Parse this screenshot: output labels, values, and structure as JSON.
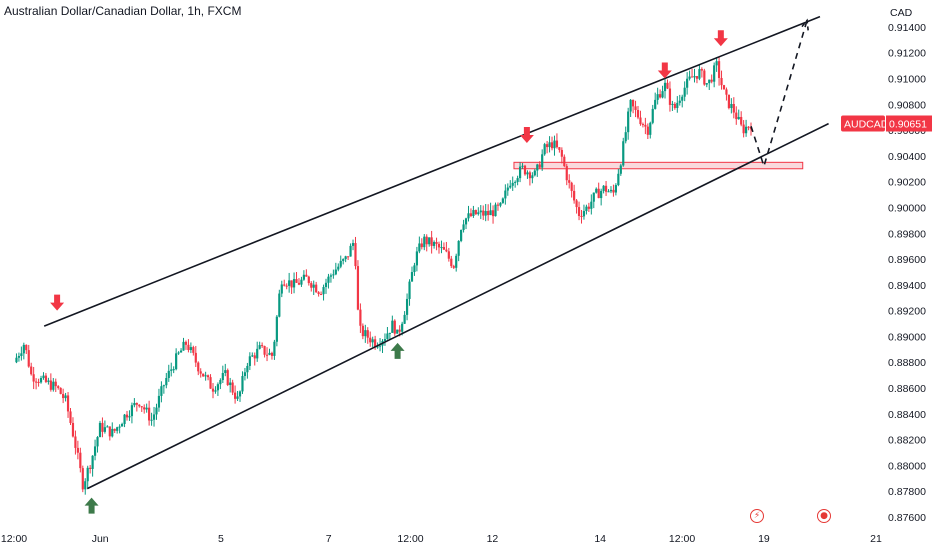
{
  "header": {
    "title": "Australian Dollar/Canadian Dollar, 1h, FXCM"
  },
  "colors": {
    "up": "#089981",
    "down": "#f23645",
    "line": "#131722",
    "zone_fill": "#f7c9ce",
    "zone_stroke": "#f23645",
    "arrow_up": "#3d7a4a",
    "arrow_down": "#f23645",
    "badge": "#f23645"
  },
  "icons": {
    "flash": "lightning-icon",
    "news": "globe-icon"
  },
  "chart_data": {
    "type": "candlestick",
    "title": "Australian Dollar/Canadian Dollar, 1h, FXCM",
    "symbol": "AUDCAD",
    "currency": "CAD",
    "last_price": 0.90651,
    "last_price_label": "0.90651",
    "ylim": [
      0.876,
      0.915
    ],
    "y_ticks": [
      "0.91400",
      "0.91200",
      "0.91000",
      "0.90800",
      "0.90600",
      "0.90400",
      "0.90200",
      "0.90000",
      "0.89800",
      "0.89600",
      "0.89400",
      "0.89200",
      "0.89000",
      "0.88800",
      "0.88600",
      "0.88400",
      "0.88200",
      "0.88000",
      "0.87800",
      "0.87600"
    ],
    "x_ticks": [
      {
        "label": "12:00",
        "pos": 0.0
      },
      {
        "label": "Jun",
        "pos": 0.1
      },
      {
        "label": "5",
        "pos": 0.24
      },
      {
        "label": "7",
        "pos": 0.365
      },
      {
        "label": "12:00",
        "pos": 0.46
      },
      {
        "label": "12",
        "pos": 0.555
      },
      {
        "label": "14",
        "pos": 0.68
      },
      {
        "label": "12:00",
        "pos": 0.775
      },
      {
        "label": "19",
        "pos": 0.87
      },
      {
        "label": "21",
        "pos": 1.0
      }
    ],
    "close_path": [
      [
        0.0,
        0.888
      ],
      [
        0.012,
        0.8895
      ],
      [
        0.02,
        0.887
      ],
      [
        0.035,
        0.8865
      ],
      [
        0.05,
        0.886
      ],
      [
        0.06,
        0.885
      ],
      [
        0.07,
        0.882
      ],
      [
        0.08,
        0.8785
      ],
      [
        0.09,
        0.8805
      ],
      [
        0.1,
        0.883
      ],
      [
        0.115,
        0.8825
      ],
      [
        0.13,
        0.884
      ],
      [
        0.145,
        0.885
      ],
      [
        0.16,
        0.8835
      ],
      [
        0.175,
        0.8865
      ],
      [
        0.19,
        0.8885
      ],
      [
        0.2,
        0.8895
      ],
      [
        0.215,
        0.8875
      ],
      [
        0.23,
        0.886
      ],
      [
        0.245,
        0.887
      ],
      [
        0.26,
        0.885
      ],
      [
        0.27,
        0.888
      ],
      [
        0.285,
        0.889
      ],
      [
        0.3,
        0.8885
      ],
      [
        0.31,
        0.8945
      ],
      [
        0.325,
        0.894
      ],
      [
        0.34,
        0.8945
      ],
      [
        0.355,
        0.8935
      ],
      [
        0.37,
        0.895
      ],
      [
        0.385,
        0.896
      ],
      [
        0.395,
        0.8975
      ],
      [
        0.4,
        0.8905
      ],
      [
        0.41,
        0.89
      ],
      [
        0.42,
        0.8895
      ],
      [
        0.43,
        0.89
      ],
      [
        0.44,
        0.891
      ],
      [
        0.445,
        0.89
      ],
      [
        0.455,
        0.8925
      ],
      [
        0.465,
        0.896
      ],
      [
        0.475,
        0.8975
      ],
      [
        0.49,
        0.897
      ],
      [
        0.5,
        0.8965
      ],
      [
        0.51,
        0.8955
      ],
      [
        0.52,
        0.899
      ],
      [
        0.535,
        0.8995
      ],
      [
        0.55,
        0.8995
      ],
      [
        0.565,
        0.9
      ],
      [
        0.575,
        0.902
      ],
      [
        0.59,
        0.903
      ],
      [
        0.605,
        0.9025
      ],
      [
        0.615,
        0.9045
      ],
      [
        0.625,
        0.905
      ],
      [
        0.635,
        0.904
      ],
      [
        0.645,
        0.9015
      ],
      [
        0.655,
        0.8995
      ],
      [
        0.665,
        0.9
      ],
      [
        0.675,
        0.901
      ],
      [
        0.685,
        0.9015
      ],
      [
        0.695,
        0.901
      ],
      [
        0.705,
        0.904
      ],
      [
        0.715,
        0.908
      ],
      [
        0.725,
        0.907
      ],
      [
        0.735,
        0.906
      ],
      [
        0.745,
        0.9085
      ],
      [
        0.755,
        0.9095
      ],
      [
        0.765,
        0.9075
      ],
      [
        0.775,
        0.909
      ],
      [
        0.785,
        0.91
      ],
      [
        0.795,
        0.9105
      ],
      [
        0.805,
        0.9095
      ],
      [
        0.815,
        0.911
      ],
      [
        0.825,
        0.9085
      ],
      [
        0.835,
        0.9075
      ],
      [
        0.845,
        0.906
      ],
      [
        0.855,
        0.9065
      ]
    ],
    "channel_upper": [
      [
        0.035,
        0.8908
      ],
      [
        0.935,
        0.9148
      ]
    ],
    "channel_lower": [
      [
        0.085,
        0.8782
      ],
      [
        0.945,
        0.9065
      ]
    ],
    "projection_path": [
      [
        0.855,
        0.9063
      ],
      [
        0.87,
        0.9032
      ],
      [
        0.92,
        0.9145
      ]
    ],
    "resistance_zone": [
      [
        0.58,
        0.903
      ],
      [
        0.915,
        0.9035
      ]
    ],
    "signal_arrows": [
      {
        "dir": "down",
        "x": 0.05,
        "y": 0.892
      },
      {
        "dir": "up",
        "x": 0.09,
        "y": 0.8775
      },
      {
        "dir": "up",
        "x": 0.445,
        "y": 0.8895
      },
      {
        "dir": "down",
        "x": 0.595,
        "y": 0.905
      },
      {
        "dir": "down",
        "x": 0.755,
        "y": 0.91
      },
      {
        "dir": "down",
        "x": 0.82,
        "y": 0.9125
      }
    ]
  }
}
